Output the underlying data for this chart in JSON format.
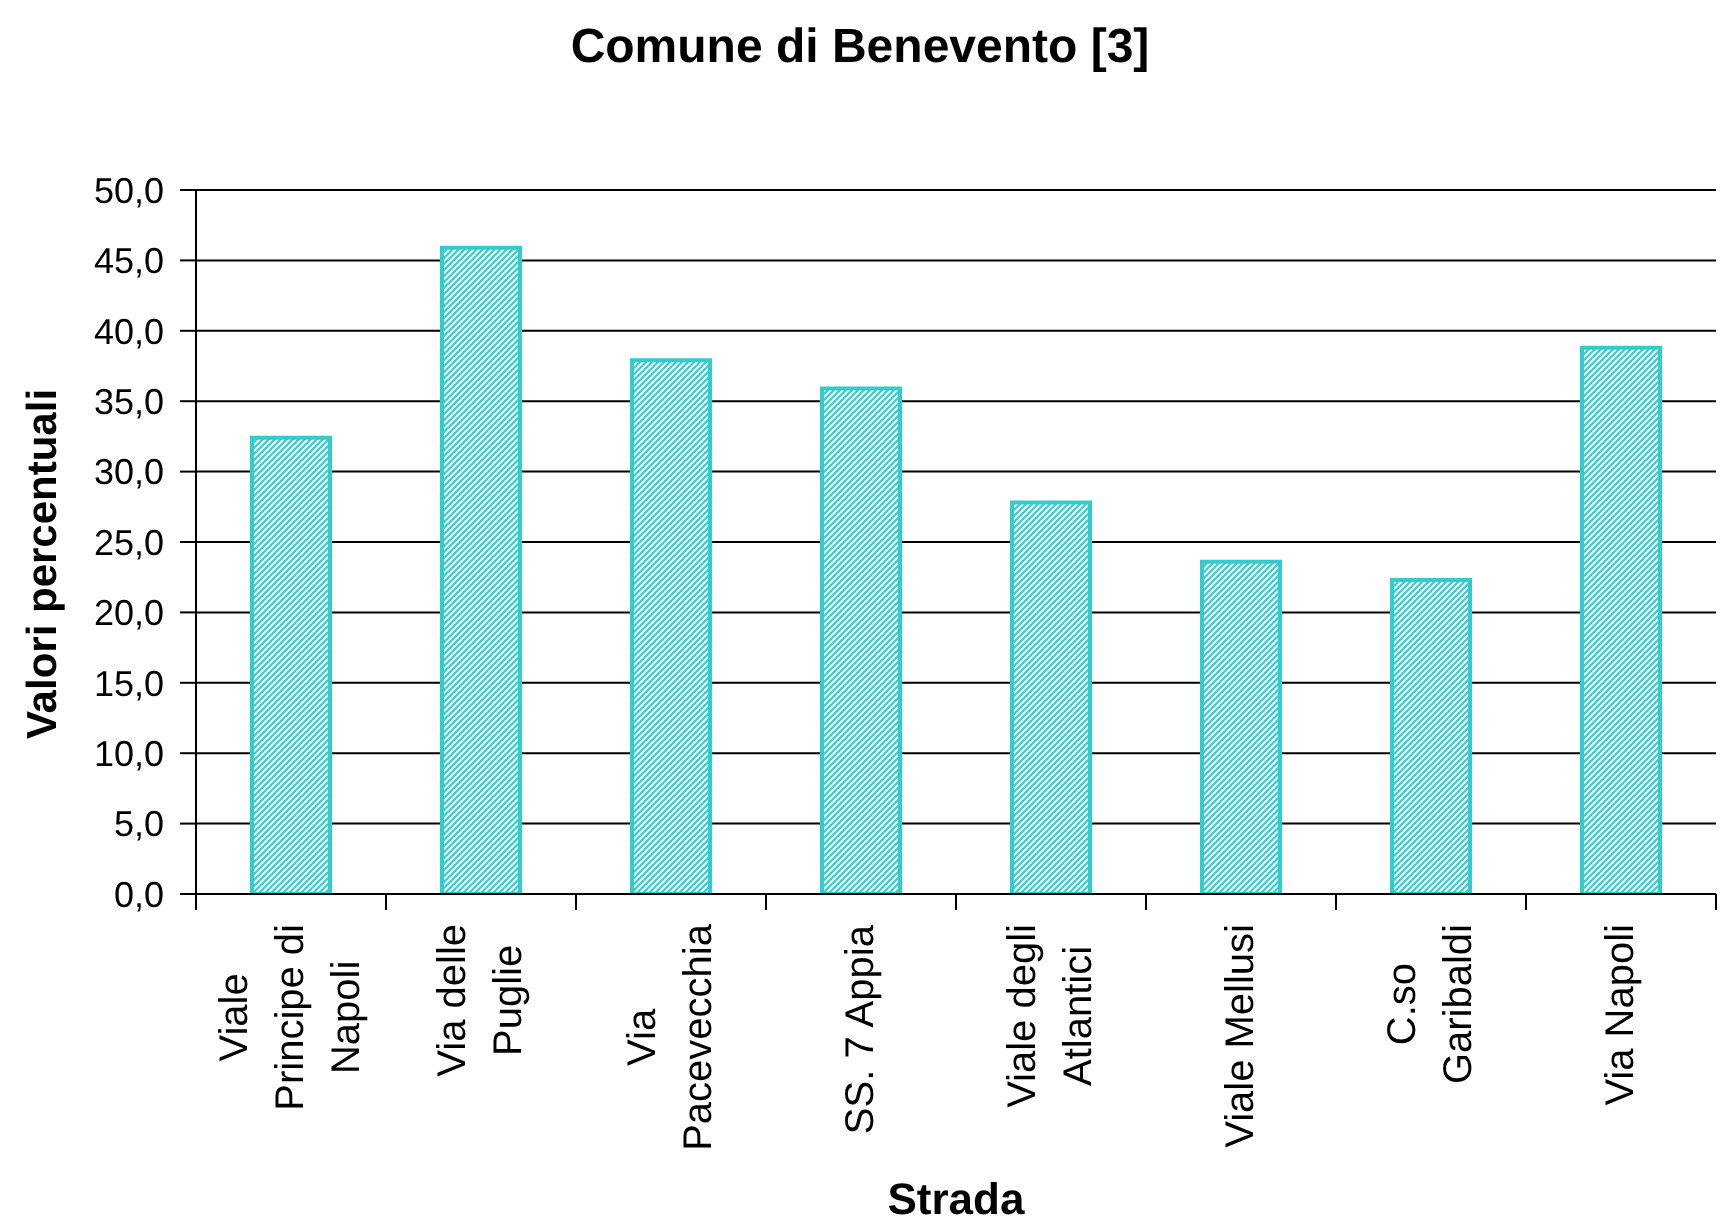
{
  "chart_data": {
    "type": "bar",
    "title": "Comune di Benevento [3]",
    "xlabel": "Strada",
    "ylabel": "Valori percentuali",
    "categories": [
      "Viale Principe di Napoli",
      "Via delle Puglie",
      "Via Pacevecchia",
      "SS. 7 Appia",
      "Viale degli Atlantici",
      "Viale Mellusi",
      "C.so Garibaldi",
      "Via Napoli"
    ],
    "values": [
      32.4,
      45.9,
      37.9,
      35.9,
      27.8,
      23.6,
      22.3,
      38.8
    ],
    "color": "#33cccc",
    "ylim": [
      0,
      50
    ],
    "yticks": [
      {
        "value": 0,
        "label": "0,0"
      },
      {
        "value": 5,
        "label": "5,0"
      },
      {
        "value": 10,
        "label": "10,0"
      },
      {
        "value": 15,
        "label": "15,0"
      },
      {
        "value": 20,
        "label": "20,0"
      },
      {
        "value": 25,
        "label": "25,0"
      },
      {
        "value": 30,
        "label": "30,0"
      },
      {
        "value": 35,
        "label": "35,0"
      },
      {
        "value": 40,
        "label": "40,0"
      },
      {
        "value": 45,
        "label": "45,0"
      },
      {
        "value": 50,
        "label": "50,0"
      }
    ],
    "grid": "y"
  }
}
